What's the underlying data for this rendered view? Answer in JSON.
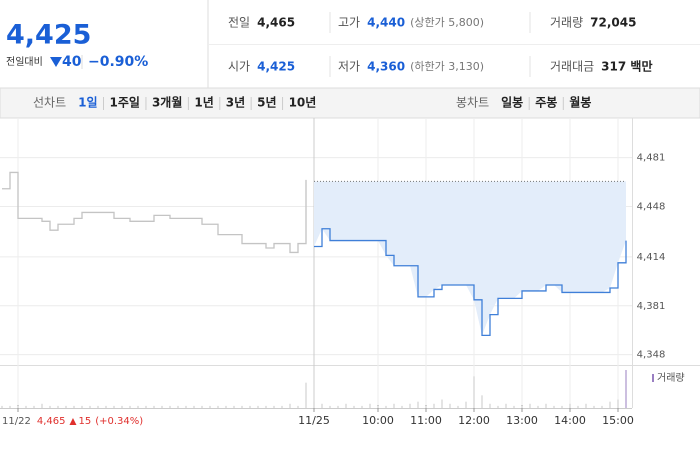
{
  "header": {
    "price": "4,425",
    "change_label": "전일대비",
    "change": "40",
    "change_pct": "−0.90%",
    "stats": [
      [
        {
          "label": "전일",
          "value": "4,465"
        },
        {
          "label": "고가",
          "value": "4,440",
          "note": "(상한가 5,800)"
        },
        {
          "label": "거래량",
          "value": "72,045"
        }
      ],
      [
        {
          "label": "시가",
          "value": "4,425"
        },
        {
          "label": "저가",
          "value": "4,360",
          "note": "(하한가 3,130)"
        },
        {
          "label": "거래대금",
          "value": "317 백만"
        }
      ]
    ]
  },
  "tabs": {
    "line_label": "선차트",
    "line_tabs": [
      "1일",
      "1주일",
      "3개월",
      "1년",
      "3년",
      "5년",
      "10년"
    ],
    "selected": "1일",
    "candle_label": "봉차트",
    "candle_tabs": [
      "일봉",
      "주봉",
      "월봉"
    ]
  },
  "chart_data": {
    "type": "line",
    "categories": [
      null,
      null,
      "11/22",
      null,
      null,
      null,
      null,
      null,
      null,
      null,
      null,
      null,
      null,
      null,
      null,
      null,
      null,
      null,
      null,
      null,
      null,
      null,
      null,
      null,
      null,
      null,
      null,
      null,
      null,
      null,
      null,
      null,
      null,
      null,
      null,
      null,
      null,
      null,
      null,
      "11/25",
      null,
      null,
      null,
      null,
      null,
      null,
      null,
      "10:00",
      null,
      null,
      null,
      null,
      null,
      "11:00",
      null,
      null,
      null,
      null,
      null,
      "12:00",
      null,
      null,
      null,
      null,
      null,
      "13:00",
      null,
      null,
      null,
      null,
      null,
      "14:00",
      null,
      null,
      null,
      null,
      null,
      "15:00",
      null
    ],
    "series": [
      {
        "color": "#c4c4c4",
        "values": [
          4460,
          4471,
          4440,
          4440,
          4440,
          4438,
          4432,
          4436,
          4436,
          4440,
          4444,
          4444,
          4444,
          4444,
          4440,
          4440,
          4438,
          4438,
          4438,
          4442,
          4442,
          4440,
          4440,
          4440,
          4440,
          4436,
          4436,
          4429,
          4429,
          4429,
          4423,
          4423,
          4423,
          4420,
          4423,
          4423,
          4417,
          4423,
          4466,
          null,
          null,
          null,
          null,
          null,
          null,
          null,
          null,
          null,
          null,
          null,
          null,
          null,
          null,
          null,
          null,
          null,
          null,
          null,
          null,
          null,
          null,
          null,
          null,
          null,
          null,
          null,
          null,
          null,
          null,
          null,
          null,
          null,
          null,
          null,
          null,
          null,
          null,
          null,
          null
        ]
      },
      {
        "color": "#3f7fd8",
        "fill": "#e3edfa",
        "values": [
          null,
          null,
          null,
          null,
          null,
          null,
          null,
          null,
          null,
          null,
          null,
          null,
          null,
          null,
          null,
          null,
          null,
          null,
          null,
          null,
          null,
          null,
          null,
          null,
          null,
          null,
          null,
          null,
          null,
          null,
          null,
          null,
          null,
          null,
          null,
          null,
          null,
          null,
          null,
          4421,
          4433,
          4425,
          4425,
          4425,
          4425,
          4425,
          4425,
          4425,
          4415,
          4408,
          4408,
          4408,
          4387,
          4387,
          4392,
          4395,
          4395,
          4395,
          4395,
          4385,
          4361,
          4375,
          4386,
          4386,
          4386,
          4391,
          4391,
          4391,
          4395,
          4395,
          4390,
          4390,
          4390,
          4390,
          4390,
          4390,
          4393,
          4410,
          4425
        ]
      }
    ],
    "baseline": 4465,
    "ylim": [
      4341,
      4501
    ],
    "yticks": [
      {
        "value": 4348,
        "label": "4,348"
      },
      {
        "value": 4381,
        "label": "4,381"
      },
      {
        "value": 4414,
        "label": "4,414"
      },
      {
        "value": 4448,
        "label": "4,448"
      },
      {
        "value": 4481,
        "label": "4,481"
      }
    ],
    "volume_label": "거래량",
    "volume": {
      "color": "#c8c8c8",
      "values": [
        1,
        1,
        1,
        1,
        1,
        2,
        1,
        1,
        1,
        1,
        1,
        1,
        1,
        1,
        1,
        1,
        1,
        1,
        1,
        1,
        1,
        1,
        1,
        1,
        1,
        1,
        1,
        1,
        1,
        1,
        1,
        1,
        1,
        1,
        1,
        1,
        2,
        1,
        12,
        3,
        2,
        1,
        1,
        2,
        1,
        1,
        2,
        1,
        1,
        2,
        1,
        2,
        3,
        1,
        2,
        4,
        2,
        1,
        3,
        15,
        6,
        2,
        1,
        2,
        1,
        1,
        2,
        1,
        2,
        1,
        1,
        2,
        1,
        2,
        1,
        1,
        3,
        4,
        18
      ]
    },
    "footer": {
      "date": "11/22",
      "close": "4,465",
      "change": "15",
      "change_pct": "(+0.34%)"
    }
  }
}
